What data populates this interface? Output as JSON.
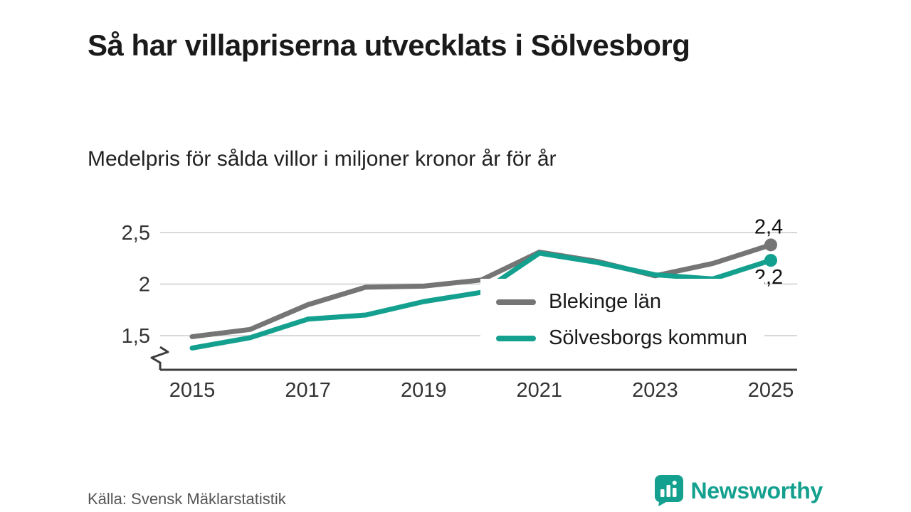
{
  "header": {
    "title": "Så har villapriserna utvecklats i Sölvesborg",
    "subtitle": "Medelpris för sålda villor i miljoner kronor år för år"
  },
  "chart_data": {
    "type": "line",
    "x": [
      2015,
      2016,
      2017,
      2018,
      2019,
      2020,
      2021,
      2022,
      2023,
      2024,
      2025
    ],
    "series": [
      {
        "name": "Blekinge län",
        "color": "#757575",
        "values": [
          1.49,
          1.56,
          1.8,
          1.97,
          1.98,
          2.04,
          2.31,
          2.22,
          2.08,
          2.2,
          2.38
        ],
        "end_label": "2,4"
      },
      {
        "name": "Sölvesborgs kommun",
        "color": "#14a08e",
        "values": [
          1.38,
          1.48,
          1.66,
          1.7,
          1.83,
          1.92,
          2.3,
          2.21,
          2.09,
          2.05,
          2.23
        ],
        "end_label": "2,2"
      }
    ],
    "yticks": [
      {
        "value": 1.5,
        "label": "1,5"
      },
      {
        "value": 2.0,
        "label": "2"
      },
      {
        "value": 2.5,
        "label": "2,5"
      }
    ],
    "xticks": [
      {
        "value": 2015,
        "label": "2015"
      },
      {
        "value": 2017,
        "label": "2017"
      },
      {
        "value": 2019,
        "label": "2019"
      },
      {
        "value": 2021,
        "label": "2021"
      },
      {
        "value": 2023,
        "label": "2023"
      },
      {
        "value": 2025,
        "label": "2025"
      }
    ],
    "ylim": [
      1.169,
      2.617
    ],
    "grid": "horizontal",
    "axis_break": true,
    "legend_position": "inside-right",
    "unit": "miljoner kronor"
  },
  "footer": {
    "source": "Källa: Svensk Mäklarstatistik",
    "brand": "Newsworthy"
  },
  "colors": {
    "grid": "#d8d8d8",
    "axis": "#3d3d3d",
    "brand_teal": "#14a08e"
  }
}
